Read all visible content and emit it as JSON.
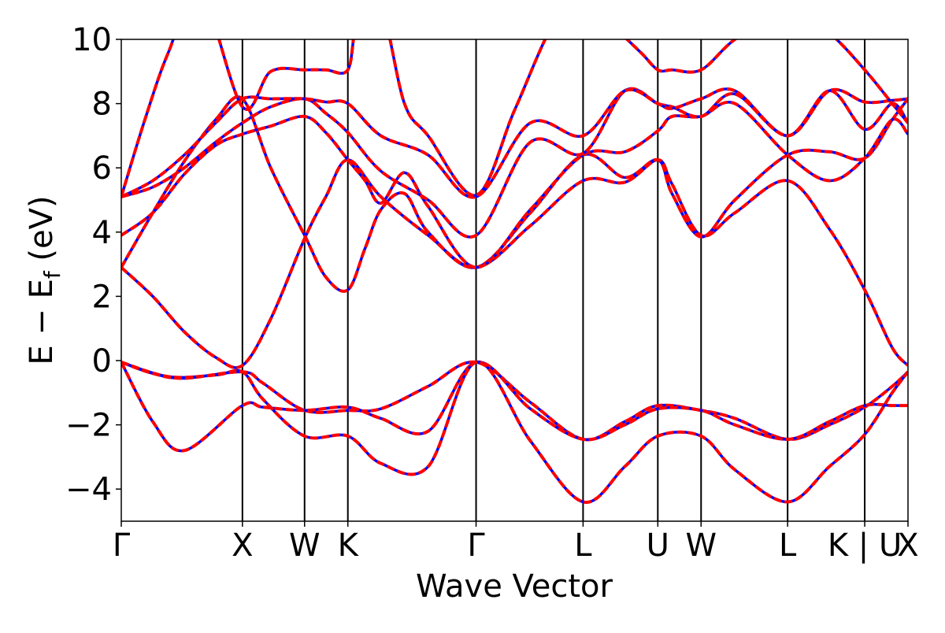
{
  "chart_data": {
    "type": "line",
    "title": "",
    "xlabel": "Wave Vector",
    "ylabel": {
      "main": "E − E",
      "subscript": "f",
      "unit": " (eV)"
    },
    "ylim": [
      -5,
      10
    ],
    "yticks": [
      10,
      8,
      6,
      4,
      2,
      0,
      -2,
      -4
    ],
    "ytick_labels": [
      "10",
      "8",
      "6",
      "4",
      "2",
      "0",
      "−2",
      "−4"
    ],
    "xlim": [
      0,
      1
    ],
    "high_symmetry_points": [
      {
        "label": "Γ",
        "x": 0.0
      },
      {
        "label": "X",
        "x": 0.154
      },
      {
        "label": "W",
        "x": 0.233
      },
      {
        "label": "K",
        "x": 0.288
      },
      {
        "label": "Γ",
        "x": 0.451
      },
      {
        "label": "L",
        "x": 0.587
      },
      {
        "label": "U",
        "x": 0.682
      },
      {
        "label": "W",
        "x": 0.737
      },
      {
        "label": "L",
        "x": 0.847
      },
      {
        "label": "K | U",
        "x": 0.945
      },
      {
        "label": "X",
        "x": 1.0
      }
    ],
    "grid": false,
    "legend": "none",
    "styles": {
      "solid_color": "#0000ff",
      "dashed_color": "#ff0000",
      "vline_color": "#000000"
    },
    "series": [
      {
        "x": [
          0,
          0.04,
          0.08,
          0.154,
          0.18,
          0.233,
          0.288,
          0.33,
          0.39,
          0.451,
          0.52,
          0.587,
          0.64,
          0.682,
          0.737,
          0.78,
          0.847,
          0.9,
          0.945,
          0.98,
          1.0
        ],
        "y": [
          -0.05,
          -0.4,
          -0.55,
          -0.35,
          -0.7,
          -1.55,
          -1.55,
          -1.5,
          -0.8,
          -0.05,
          -1.3,
          -2.45,
          -1.9,
          -1.4,
          -1.55,
          -1.8,
          -2.45,
          -2.0,
          -1.45,
          -0.8,
          -0.35
        ]
      },
      {
        "x": [
          0,
          0.04,
          0.08,
          0.154,
          0.18,
          0.233,
          0.288,
          0.33,
          0.39,
          0.451,
          0.52,
          0.587,
          0.64,
          0.682,
          0.737,
          0.78,
          0.847,
          0.9,
          0.945,
          0.98,
          1.0
        ],
        "y": [
          -0.05,
          -1.9,
          -2.8,
          -1.4,
          -1.45,
          -1.55,
          -1.45,
          -1.8,
          -2.2,
          -0.05,
          -1.5,
          -2.45,
          -2.0,
          -1.5,
          -1.55,
          -2.0,
          -2.45,
          -1.9,
          -1.4,
          -1.4,
          -1.4
        ]
      },
      {
        "x": [
          0,
          0.06,
          0.12,
          0.154,
          0.18,
          0.233,
          0.288,
          0.33,
          0.39,
          0.451,
          0.52,
          0.587,
          0.64,
          0.682,
          0.737,
          0.78,
          0.847,
          0.9,
          0.945,
          0.98,
          1.0
        ],
        "y": [
          -0.05,
          -0.5,
          -0.45,
          -0.35,
          -1.2,
          -2.35,
          -2.35,
          -3.2,
          -3.3,
          -0.05,
          -2.5,
          -4.4,
          -3.3,
          -2.35,
          -2.35,
          -3.4,
          -4.4,
          -3.3,
          -2.3,
          -1.0,
          -0.35
        ]
      },
      {
        "x": [
          0,
          0.04,
          0.08,
          0.12,
          0.154,
          0.19,
          0.233,
          0.26,
          0.288,
          0.33,
          0.39,
          0.451,
          0.52,
          0.587,
          0.64,
          0.682,
          0.7,
          0.737,
          0.78,
          0.847,
          0.9,
          0.945,
          0.98,
          1.0
        ],
        "y": [
          2.9,
          2.0,
          0.9,
          0.1,
          -0.15,
          1.3,
          3.8,
          5.1,
          6.25,
          5.1,
          3.9,
          2.9,
          4.2,
          5.6,
          5.55,
          6.25,
          5.5,
          3.9,
          4.6,
          5.6,
          4.1,
          2.2,
          0.4,
          -0.15
        ]
      },
      {
        "x": [
          0,
          0.04,
          0.08,
          0.12,
          0.154,
          0.19,
          0.233,
          0.26,
          0.288,
          0.31,
          0.33,
          0.36,
          0.39,
          0.451,
          0.52,
          0.587,
          0.64,
          0.682,
          0.7,
          0.737,
          0.78,
          0.847,
          0.9,
          0.945,
          0.98,
          1.0
        ],
        "y": [
          2.9,
          4.6,
          6.2,
          7.5,
          8.15,
          6.0,
          3.9,
          2.6,
          2.2,
          3.5,
          4.7,
          5.2,
          4.0,
          2.9,
          4.6,
          6.4,
          5.7,
          6.25,
          5.2,
          3.85,
          5.0,
          6.4,
          6.5,
          6.3,
          7.5,
          8.15
        ]
      },
      {
        "x": [
          0,
          0.04,
          0.08,
          0.12,
          0.154,
          0.19,
          0.233,
          0.26,
          0.288,
          0.31,
          0.33,
          0.36,
          0.39,
          0.451,
          0.52,
          0.587,
          0.64,
          0.682,
          0.7,
          0.737,
          0.78,
          0.847,
          0.9,
          0.945,
          0.98,
          1.0
        ],
        "y": [
          3.9,
          4.6,
          5.8,
          6.7,
          7.05,
          7.3,
          7.6,
          7.1,
          6.25,
          5.6,
          4.9,
          5.85,
          4.8,
          2.9,
          4.7,
          6.4,
          6.5,
          7.15,
          7.6,
          7.6,
          8.0,
          6.4,
          5.6,
          6.3,
          7.5,
          7.05
        ]
      },
      {
        "x": [
          0,
          0.04,
          0.08,
          0.12,
          0.154,
          0.19,
          0.233,
          0.26,
          0.288,
          0.33,
          0.39,
          0.451,
          0.52,
          0.587,
          0.64,
          0.682,
          0.7,
          0.737,
          0.78,
          0.847,
          0.9,
          0.945,
          0.98,
          1.0
        ],
        "y": [
          5.1,
          5.4,
          6.0,
          6.8,
          7.4,
          7.9,
          8.15,
          7.7,
          7.1,
          5.9,
          5.0,
          3.9,
          6.8,
          6.45,
          8.4,
          8.0,
          7.9,
          7.6,
          8.3,
          7.0,
          8.4,
          7.2,
          8.0,
          7.4
        ]
      },
      {
        "x": [
          0,
          0.04,
          0.08,
          0.12,
          0.154,
          0.19,
          0.233,
          0.26,
          0.288,
          0.33,
          0.39,
          0.451,
          0.52,
          0.587,
          0.64,
          0.682,
          0.7,
          0.737,
          0.78,
          0.847,
          0.9,
          0.945,
          0.98,
          1.0
        ],
        "y": [
          5.1,
          5.6,
          6.4,
          7.4,
          8.15,
          8.15,
          8.15,
          8.05,
          8.0,
          7.0,
          6.4,
          5.1,
          7.4,
          7.0,
          8.4,
          8.0,
          7.85,
          8.15,
          8.4,
          7.0,
          8.4,
          8.05,
          8.1,
          8.15
        ]
      },
      {
        "x": [
          0,
          0.03,
          0.06,
          0.1,
          0.154,
          0.19,
          0.233,
          0.26,
          0.288,
          0.3,
          0.33,
          0.36,
          0.39,
          0.451,
          0.5,
          0.55,
          0.587,
          0.62,
          0.66,
          0.682,
          0.7,
          0.737,
          0.78,
          0.847,
          0.9,
          0.945,
          0.98,
          1.0
        ],
        "y": [
          5.1,
          7.5,
          9.6,
          11.5,
          7.9,
          9.0,
          9.05,
          9.05,
          9.05,
          10.5,
          11.0,
          8.0,
          7.0,
          5.15,
          7.8,
          10.5,
          11.0,
          10.5,
          9.6,
          9.05,
          9.05,
          9.05,
          10.0,
          11.0,
          10.2,
          9.05,
          8.0,
          7.4
        ]
      }
    ]
  }
}
